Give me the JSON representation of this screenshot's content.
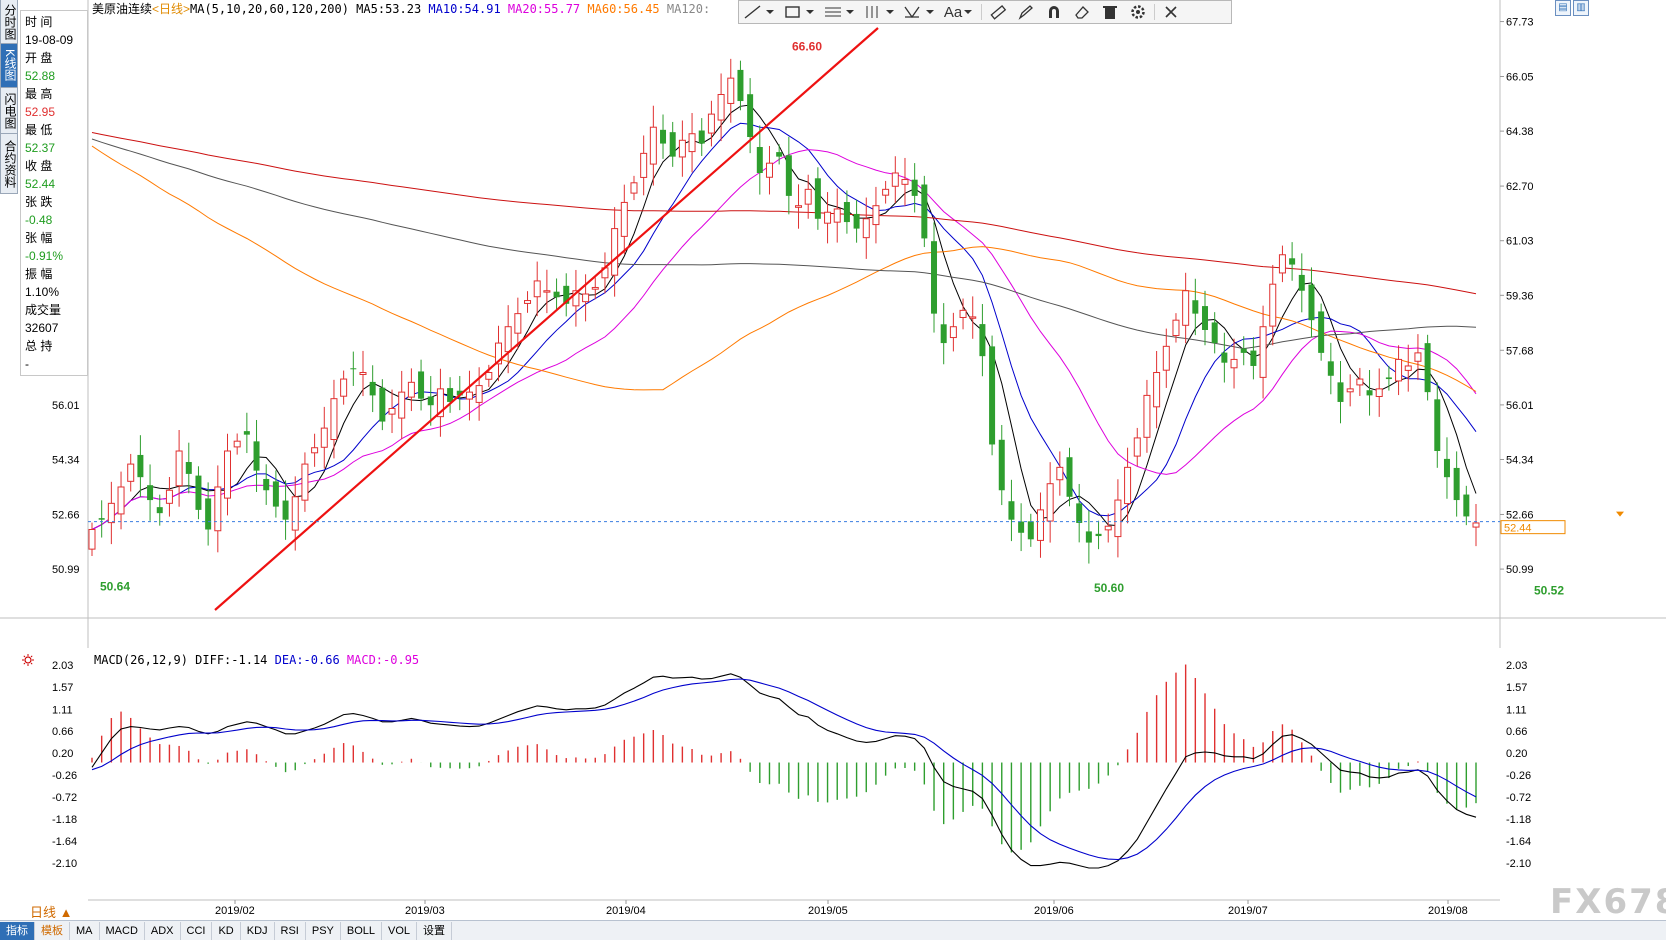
{
  "title": {
    "name": "美原油连续",
    "period": "<日线>"
  },
  "ma_header": [
    {
      "label": "MA(5,10,20,60,120,200)",
      "color": "#000000"
    },
    {
      "label": "MA5:53.23",
      "color": "#000000"
    },
    {
      "label": "MA10:54.91",
      "color": "#0000cc"
    },
    {
      "label": "MA20:55.77",
      "color": "#dd00dd"
    },
    {
      "label": "MA60:56.45",
      "color": "#ff7a00"
    },
    {
      "label": "MA120:",
      "color": "#888888"
    }
  ],
  "left_tabs": [
    "分时图",
    "K线图",
    "闪电图",
    "合约资料"
  ],
  "info_panel": [
    {
      "label": "时 间",
      "value": "19-08-09",
      "tone": "neutral"
    },
    {
      "label": "开 盘",
      "value": "52.88",
      "tone": "down"
    },
    {
      "label": "最 高",
      "value": "52.95",
      "tone": "up"
    },
    {
      "label": "最 低",
      "value": "52.37",
      "tone": "down"
    },
    {
      "label": "收 盘",
      "value": "52.44",
      "tone": "down"
    },
    {
      "label": "张 跌",
      "value": "-0.48",
      "tone": "down"
    },
    {
      "label": "张 幅",
      "value": "-0.91%",
      "tone": "down"
    },
    {
      "label": "振 幅",
      "value": "1.10%",
      "tone": "neutral"
    },
    {
      "label": "成交量",
      "value": "32607",
      "tone": "neutral"
    },
    {
      "label": "总 持",
      "value": "-",
      "tone": "neutral"
    }
  ],
  "toolbar": {
    "icons": [
      "line-tool-icon",
      "rect-tool-icon",
      "fib-tool-icon",
      "channel-tool-icon",
      "pattern-tool-icon",
      "text-tool-icon",
      "ruler-icon",
      "pen-icon",
      "magnet-icon",
      "eraser-icon",
      "trash-icon",
      "gear-icon",
      "close-icon"
    ],
    "text_label": "Aa"
  },
  "macd_header": [
    {
      "label": "MACD(26,12,9)",
      "color": "#000000"
    },
    {
      "label": "DIFF:-1.14",
      "color": "#000000"
    },
    {
      "label": "DEA:-0.66",
      "color": "#0000cc"
    },
    {
      "label": "MACD:-0.95",
      "color": "#dd00dd"
    }
  ],
  "chart_data": [
    {
      "type": "candlestick",
      "title": "美原油连续<日线>",
      "y_axis_labels": [
        "67.73",
        "66.05",
        "64.38",
        "62.70",
        "61.03",
        "59.36",
        "57.68",
        "56.01",
        "54.34",
        "52.66",
        "50.99"
      ],
      "left_axis_labels": [
        "56.01",
        "54.34",
        "52.66",
        "50.99"
      ],
      "ylim": [
        49.8,
        67.9
      ],
      "x_labels": [
        "2019/02",
        "2019/03",
        "2019/04",
        "2019/05",
        "2019/06",
        "2019/07",
        "2019/08"
      ],
      "annotations": [
        {
          "text": "66.60",
          "tone": "up"
        },
        {
          "text": "50.64",
          "tone": "down"
        },
        {
          "text": "50.60",
          "tone": "down"
        },
        {
          "text": "50.52",
          "tone": "down"
        }
      ],
      "last_price": "52.44",
      "series": [
        {
          "name": "MA5",
          "color": "#000000"
        },
        {
          "name": "MA10",
          "color": "#0000cc"
        },
        {
          "name": "MA20",
          "color": "#dd00dd"
        },
        {
          "name": "MA60",
          "color": "#ff7a00"
        },
        {
          "name": "MA120",
          "color": "#555555"
        },
        {
          "name": "MA200",
          "color": "#cc1111"
        }
      ],
      "closes": [
        52.2,
        52.5,
        53.0,
        53.5,
        54.2,
        53.8,
        53.1,
        52.7,
        53.4,
        54.6,
        53.9,
        52.8,
        52.2,
        53.5,
        54.6,
        54.9,
        55.1,
        54.0,
        53.4,
        52.9,
        52.5,
        53.2,
        54.2,
        54.7,
        55.3,
        56.2,
        56.8,
        57.1,
        57.0,
        56.3,
        55.5,
        55.9,
        56.4,
        56.7,
        56.2,
        56.0,
        56.5,
        56.1,
        56.3,
        56.4,
        56.6,
        57.0,
        57.9,
        58.4,
        58.8,
        59.2,
        59.8,
        59.5,
        59.3,
        59.1,
        59.5,
        59.4,
        59.6,
        60.2,
        61.4,
        62.2,
        62.8,
        63.7,
        64.5,
        64.0,
        63.6,
        64.1,
        64.3,
        64.0,
        64.9,
        65.5,
        66.0,
        65.3,
        64.2,
        63.1,
        63.4,
        63.6,
        62.4,
        62.1,
        62.6,
        61.7,
        61.9,
        62.0,
        61.6,
        61.4,
        61.7,
        62.1,
        62.6,
        63.1,
        62.9,
        62.4,
        61.1,
        58.8,
        57.9,
        58.4,
        58.9,
        58.7,
        57.5,
        54.8,
        53.4,
        52.5,
        52.1,
        51.9,
        52.8,
        53.6,
        54.1,
        53.2,
        52.4,
        51.8,
        52.0,
        52.3,
        53.1,
        54.1,
        55.0,
        56.3,
        57.0,
        57.8,
        58.6,
        59.5,
        58.8,
        58.3,
        57.9,
        57.3,
        57.4,
        57.6,
        57.2,
        58.4,
        59.7,
        60.6,
        60.3,
        59.5,
        58.6,
        57.6,
        56.9,
        56.1,
        56.5,
        56.8,
        56.3,
        56.5,
        56.8,
        57.4,
        57.2,
        57.6,
        56.4,
        54.6,
        53.8,
        53.1,
        52.6,
        52.4
      ]
    },
    {
      "type": "macd",
      "y_axis_labels": [
        "2.03",
        "1.57",
        "1.11",
        "0.66",
        "0.20",
        "-0.26",
        "-0.72",
        "-1.18",
        "-1.64",
        "-2.10"
      ],
      "ylim": [
        -2.45,
        2.18
      ],
      "series": [
        {
          "name": "DIFF",
          "color": "#000000"
        },
        {
          "name": "DEA",
          "color": "#0000cc"
        },
        {
          "name": "MACD",
          "color": "#dd00dd"
        }
      ],
      "diff": [
        -0.1,
        0.2,
        0.5,
        0.7,
        0.75,
        0.73,
        0.7,
        0.68,
        0.72,
        0.75,
        0.73,
        0.65,
        0.6,
        0.65,
        0.75,
        0.8,
        0.85,
        0.82,
        0.75,
        0.68,
        0.6,
        0.6,
        0.66,
        0.72,
        0.8,
        0.9,
        1.0,
        1.02,
        0.98,
        0.92,
        0.85,
        0.85,
        0.88,
        0.92,
        0.88,
        0.82,
        0.8,
        0.78,
        0.76,
        0.75,
        0.76,
        0.82,
        0.9,
        0.98,
        1.06,
        1.12,
        1.18,
        1.16,
        1.12,
        1.1,
        1.12,
        1.12,
        1.14,
        1.2,
        1.32,
        1.45,
        1.55,
        1.66,
        1.78,
        1.8,
        1.76,
        1.77,
        1.78,
        1.74,
        1.75,
        1.8,
        1.85,
        1.78,
        1.62,
        1.45,
        1.38,
        1.33,
        1.16,
        1.0,
        0.95,
        0.78,
        0.67,
        0.6,
        0.52,
        0.45,
        0.42,
        0.44,
        0.5,
        0.56,
        0.55,
        0.5,
        0.3,
        -0.1,
        -0.4,
        -0.5,
        -0.55,
        -0.6,
        -0.75,
        -1.1,
        -1.5,
        -1.82,
        -2.02,
        -2.15,
        -2.15,
        -2.12,
        -2.08,
        -2.1,
        -2.15,
        -2.2,
        -2.2,
        -2.15,
        -2.05,
        -1.85,
        -1.6,
        -1.25,
        -0.9,
        -0.55,
        -0.22,
        0.12,
        0.2,
        0.22,
        0.2,
        0.14,
        0.12,
        0.12,
        0.08,
        0.18,
        0.38,
        0.55,
        0.58,
        0.5,
        0.38,
        0.2,
        0.02,
        -0.16,
        -0.2,
        -0.22,
        -0.3,
        -0.32,
        -0.3,
        -0.22,
        -0.2,
        -0.15,
        -0.28,
        -0.58,
        -0.8,
        -0.98,
        -1.08,
        -1.14
      ]
    }
  ]
}
